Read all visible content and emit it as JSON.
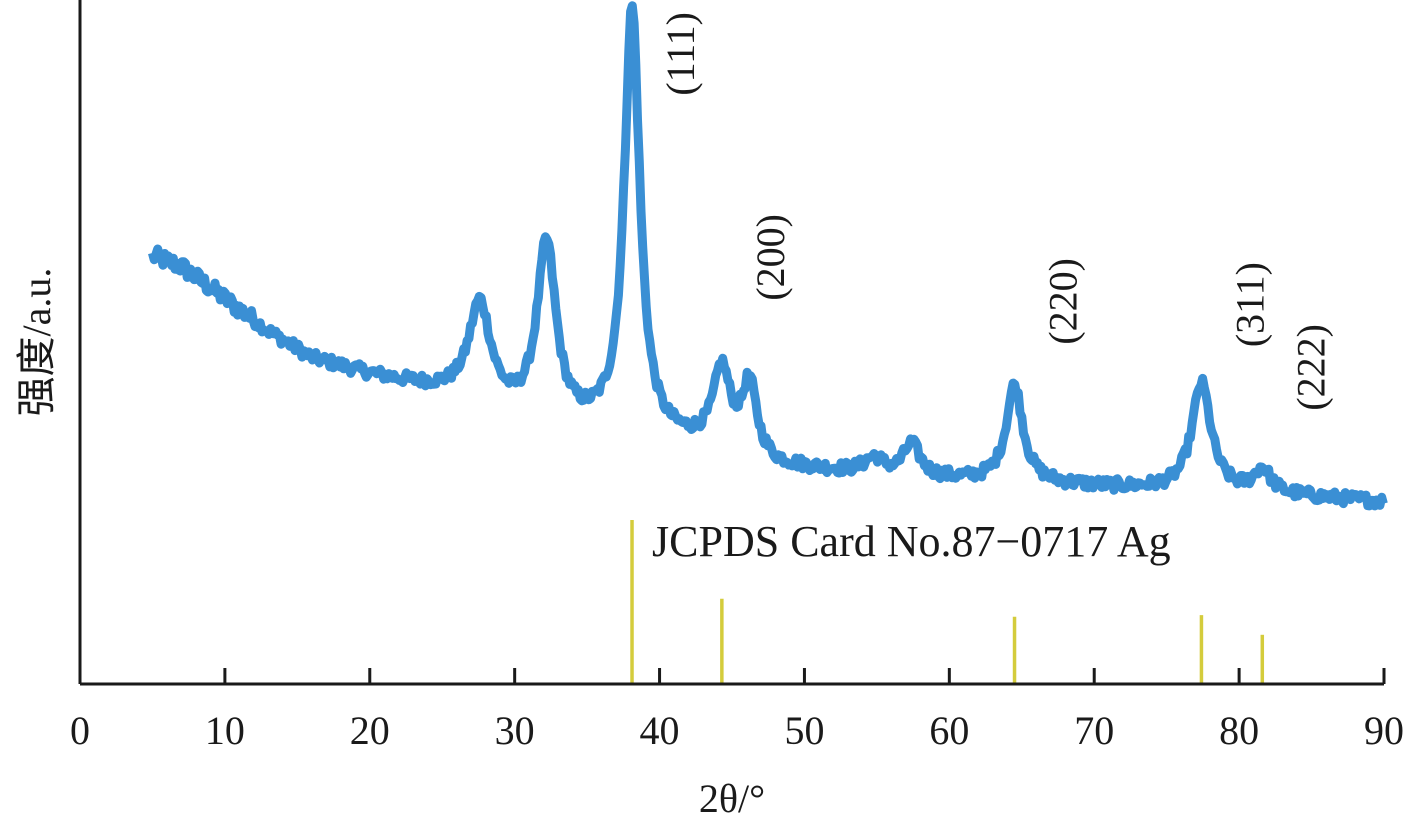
{
  "chart_data": {
    "type": "line",
    "title": "",
    "xlabel": "2θ/°",
    "ylabel": "强度/a.u.",
    "xlim": [
      0,
      90
    ],
    "x_ticks": [
      0,
      10,
      20,
      30,
      40,
      50,
      60,
      70,
      80,
      90
    ],
    "y_tick_labels": false,
    "grid": false,
    "line_color": "#3a8fd4",
    "reference_color": "#d4cc3c",
    "baseline_points": [
      [
        5,
        72
      ],
      [
        7,
        70
      ],
      [
        10,
        64
      ],
      [
        13,
        58
      ],
      [
        16,
        53
      ],
      [
        20,
        50
      ],
      [
        24,
        47.5
      ],
      [
        27,
        45.5
      ],
      [
        30,
        42
      ],
      [
        33,
        40
      ],
      [
        36,
        39.5
      ],
      [
        40,
        37.5
      ],
      [
        44,
        36.5
      ],
      [
        48,
        33
      ],
      [
        52,
        32
      ],
      [
        56,
        31
      ],
      [
        60,
        30.5
      ],
      [
        64,
        30
      ],
      [
        68,
        29.5
      ],
      [
        72,
        29
      ],
      [
        76,
        28.5
      ],
      [
        80,
        28
      ],
      [
        84,
        27.5
      ],
      [
        87,
        27
      ],
      [
        90,
        26.5
      ]
    ],
    "peaks": [
      {
        "x": 27.6,
        "height": 18,
        "width": 0.9
      },
      {
        "x": 32.2,
        "height": 33,
        "width": 0.8
      },
      {
        "x": 38.1,
        "height": 79,
        "width": 0.65
      },
      {
        "x": 44.3,
        "height": 14,
        "width": 0.7
      },
      {
        "x": 46.2,
        "height": 13,
        "width": 0.6
      },
      {
        "x": 54.8,
        "height": 3,
        "width": 0.8
      },
      {
        "x": 57.4,
        "height": 6,
        "width": 0.7
      },
      {
        "x": 64.5,
        "height": 18,
        "width": 0.7
      },
      {
        "x": 77.4,
        "height": 20,
        "width": 0.8
      },
      {
        "x": 81.6,
        "height": 4.5,
        "width": 0.7
      }
    ],
    "peak_labels": [
      {
        "text": "(111)",
        "x": 38.1
      },
      {
        "text": "(200)",
        "x": 44.3
      },
      {
        "text": "(220)",
        "x": 64.5
      },
      {
        "text": "(311)",
        "x": 77.4
      },
      {
        "text": "(222)",
        "x": 81.6
      }
    ],
    "reference": {
      "title": "JCPDS Card No.87−0717 Ag",
      "lines": [
        {
          "x": 38.1,
          "intensity": 100
        },
        {
          "x": 44.3,
          "intensity": 52
        },
        {
          "x": 64.5,
          "intensity": 41
        },
        {
          "x": 77.4,
          "intensity": 42
        },
        {
          "x": 81.6,
          "intensity": 30
        }
      ]
    }
  }
}
